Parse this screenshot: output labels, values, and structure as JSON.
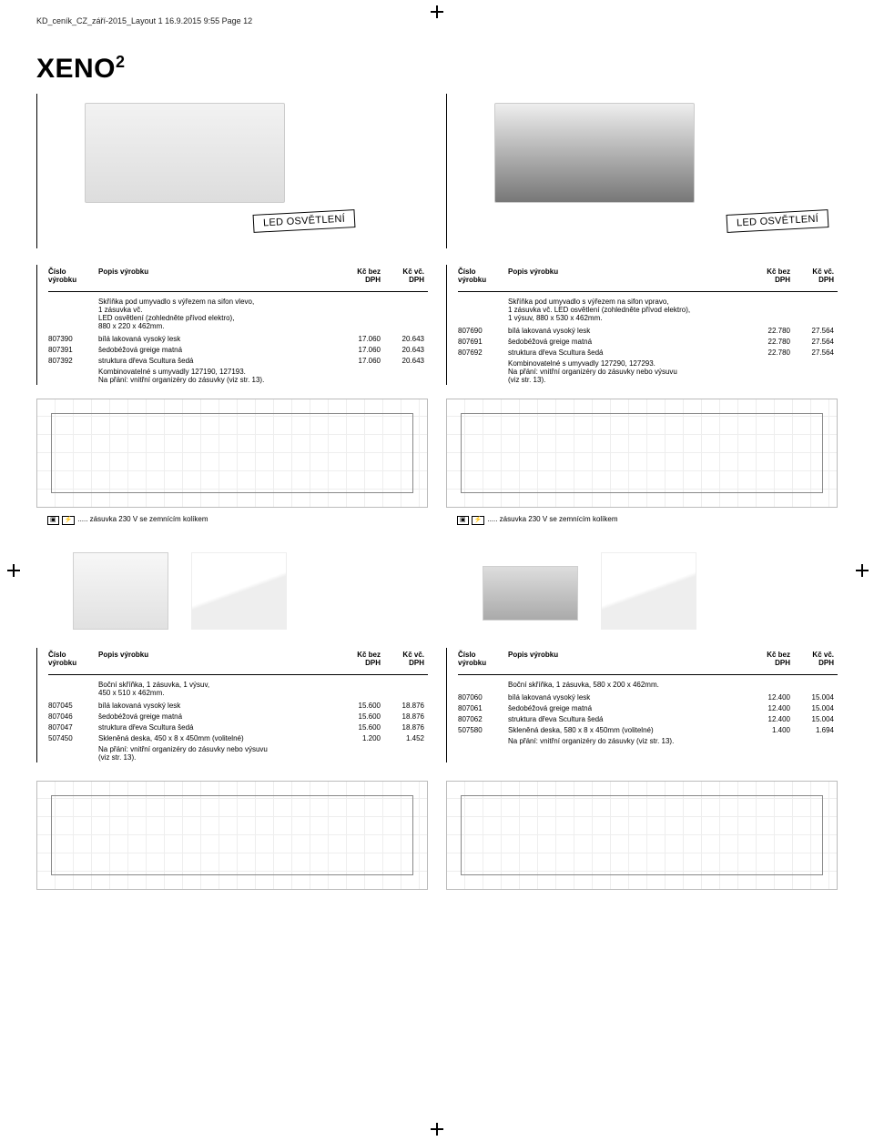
{
  "page_header": "KD_ceník_CZ_září-2015_Layout 1  16.9.2015  9:55  Page 12",
  "brand": "XENO",
  "brand_sup": "2",
  "led_badge": "LED OSVĚTLENÍ",
  "hdr": {
    "code": "Číslo\nvýrobku",
    "desc": "Popis výrobku",
    "pbez": "Kč bez\nDPH",
    "pvc": "Kč vč.\nDPH"
  },
  "section1": {
    "left": {
      "intro": "Skříňka pod umyvadlo s výřezem na sifon vlevo,\n1 zásuvka vč.\nLED osvětlení (zohledněte přívod elektro),\n880 x 220 x 462mm.",
      "rows": [
        {
          "code": "807390",
          "desc": "bílá lakovaná vysoký lesk",
          "p1": "17.060",
          "p2": "20.643"
        },
        {
          "code": "807391",
          "desc": "šedobéžová greige matná",
          "p1": "17.060",
          "p2": "20.643"
        },
        {
          "code": "807392",
          "desc": "struktura dřeva Scultura šedá",
          "p1": "17.060",
          "p2": "20.643"
        }
      ],
      "outro": "Kombinovatelné s umyvadly 127190, 127193.\nNa přání: vnitřní organizéry do zásuvky (viz str. 13)."
    },
    "right": {
      "intro": "Skříňka pod umyvadlo s výřezem na sifon vpravo,\n1 zásuvka vč. LED osvětlení (zohledněte přívod elektro),\n1 výsuv, 880 x 530 x 462mm.",
      "rows": [
        {
          "code": "807690",
          "desc": "bílá lakovaná vysoký lesk",
          "p1": "22.780",
          "p2": "27.564"
        },
        {
          "code": "807691",
          "desc": "šedobéžová greige matná",
          "p1": "22.780",
          "p2": "27.564"
        },
        {
          "code": "807692",
          "desc": "struktura dřeva Scultura šedá",
          "p1": "22.780",
          "p2": "27.564"
        }
      ],
      "outro": "Kombinovatelné s umyvadly 127290, 127293.\nNa přání: vnitřní organizéry do zásuvky nebo výsuvu\n(viz str. 13)."
    }
  },
  "footnote": "..... zásuvka 230 V se zemnícím kolíkem",
  "footnote_icon": "⚡",
  "section2": {
    "left": {
      "intro": "Boční skříňka, 1 zásuvka, 1 výsuv,\n450 x 510 x 462mm.",
      "rows": [
        {
          "code": "807045",
          "desc": "bílá lakovaná vysoký lesk",
          "p1": "15.600",
          "p2": "18.876"
        },
        {
          "code": "807046",
          "desc": "šedobéžová greige matná",
          "p1": "15.600",
          "p2": "18.876"
        },
        {
          "code": "807047",
          "desc": "struktura dřeva Scultura šedá",
          "p1": "15.600",
          "p2": "18.876"
        },
        {
          "code": "507450",
          "desc": "Skleněná deska, 450 x 8 x 450mm (volitelné)",
          "p1": "1.200",
          "p2": "1.452"
        }
      ],
      "outro": "Na přání: vnitřní organizéry do zásuvky nebo výsuvu\n(viz str. 13)."
    },
    "right": {
      "intro": "Boční skříňka, 1 zásuvka, 580 x 200 x 462mm.",
      "rows": [
        {
          "code": "807060",
          "desc": "bílá lakovaná vysoký lesk",
          "p1": "12.400",
          "p2": "15.004"
        },
        {
          "code": "807061",
          "desc": "šedobéžová greige matná",
          "p1": "12.400",
          "p2": "15.004"
        },
        {
          "code": "807062",
          "desc": "struktura dřeva Scultura šedá",
          "p1": "12.400",
          "p2": "15.004"
        },
        {
          "code": "507580",
          "desc": "Skleněná deska, 580 x 8 x 450mm (volitelné)",
          "p1": "1.400",
          "p2": "1.694"
        }
      ],
      "outro": "Na přání: vnitřní organizéry do zásuvky (viz str. 13)."
    }
  }
}
